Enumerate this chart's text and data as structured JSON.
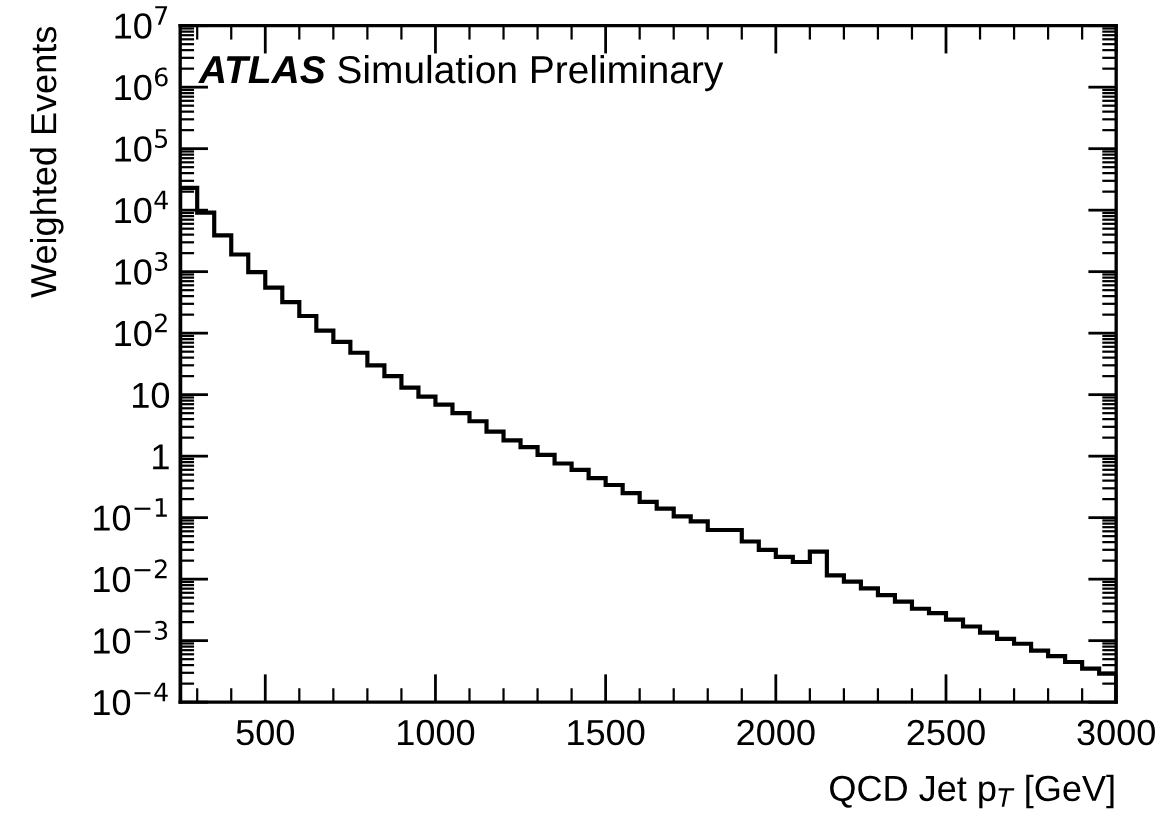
{
  "chart_data": {
    "type": "histogram",
    "xlabel": "QCD Jet p$_{T}$ [GeV]",
    "ylabel": "Weighted Events",
    "annotations": [
      "ATLAS",
      "Simulation Preliminary"
    ],
    "bins": [
      250,
      300,
      350,
      400,
      450,
      500,
      550,
      600,
      650,
      700,
      750,
      800,
      850,
      900,
      950,
      1000,
      1050,
      1100,
      1150,
      1200,
      1250,
      1300,
      1350,
      1400,
      1450,
      1500,
      1550,
      1600,
      1650,
      1700,
      1750,
      1800,
      1850,
      1900,
      1950,
      2000,
      2050,
      2100,
      2150,
      2200,
      2250,
      2300,
      2350,
      2400,
      2450,
      2500,
      2550,
      2600,
      2650,
      2700,
      2750,
      2800,
      2850,
      2900,
      2950,
      3000
    ],
    "values": [
      23000,
      9100,
      3900,
      1900,
      980,
      550,
      320,
      190,
      110,
      72,
      48,
      30,
      20,
      13,
      9.3,
      6.9,
      5.0,
      3.7,
      2.5,
      1.8,
      1.4,
      1.05,
      0.76,
      0.6,
      0.44,
      0.34,
      0.25,
      0.18,
      0.14,
      0.105,
      0.087,
      0.063,
      0.063,
      0.041,
      0.03,
      0.023,
      0.019,
      0.028,
      0.0115,
      0.0091,
      0.0071,
      0.0055,
      0.0043,
      0.0033,
      0.0028,
      0.0022,
      0.0017,
      0.00135,
      0.00107,
      0.00089,
      0.00069,
      0.00056,
      0.00045,
      0.00035,
      0.00029
    ],
    "color": "#000000",
    "log": "y",
    "grid": false,
    "xlim": [
      250,
      3000
    ],
    "xticks": [
      500,
      1000,
      1500,
      2000,
      2500,
      3000
    ],
    "ylim": [
      0.0001,
      10000000
    ],
    "yticks": [
      {
        "value": 0.0001,
        "label": "10$^{−4}$"
      },
      {
        "value": 0.001,
        "label": "10$^{−3}$"
      },
      {
        "value": 0.01,
        "label": "10$^{−2}$"
      },
      {
        "value": 0.1,
        "label": "10$^{−1}$"
      },
      1,
      10,
      {
        "value": 100,
        "label": "10$^{2}$"
      },
      {
        "value": 1000,
        "label": "10$^{3}$"
      },
      {
        "value": 10000,
        "label": "10$^{4}$"
      },
      {
        "value": 100000,
        "label": "10$^{5}$"
      },
      {
        "value": 1000000,
        "label": "10$^{6}$"
      },
      {
        "value": 10000000,
        "label": "10$^{7}$"
      }
    ]
  }
}
